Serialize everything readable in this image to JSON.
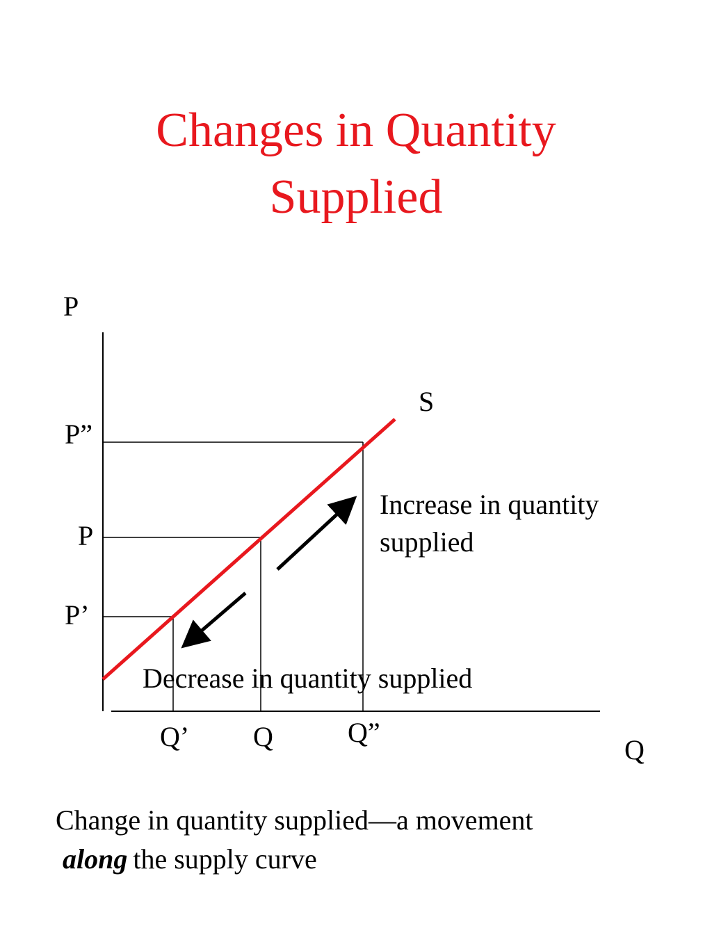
{
  "title": {
    "line1": "Changes in Quantity",
    "line2": "Supplied"
  },
  "colors": {
    "title": "#e8181e",
    "supply_curve": "#e8181e",
    "axes": "#000000"
  },
  "diagram": {
    "y_axis_label": "P",
    "x_axis_label": "Q",
    "curve_label": "S",
    "price_labels": {
      "p_double_prime": "P”",
      "p": "P",
      "p_prime": "P’"
    },
    "quantity_labels": {
      "q_prime": "Q’",
      "q": "Q",
      "q_double_prime": "Q”"
    },
    "increase_text": {
      "line1": "Increase in quantity",
      "line2": "supplied"
    },
    "decrease_text": "Decrease in quantity supplied"
  },
  "caption": {
    "line1": "Change in quantity supplied—a movement",
    "emphasis": "along",
    "line2_rest": "the supply curve"
  }
}
